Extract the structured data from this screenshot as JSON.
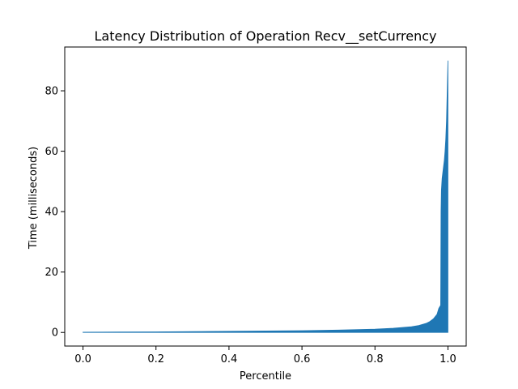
{
  "chart_data": {
    "type": "area",
    "title": "Latency Distribution of Operation Recv__setCurrency",
    "xlabel": "Percentile",
    "ylabel": "Time (milliseconds)",
    "xlim": [
      -0.05,
      1.05
    ],
    "ylim": [
      -4.5,
      94.5
    ],
    "xticks": [
      0.0,
      0.2,
      0.4,
      0.6,
      0.8,
      1.0
    ],
    "xtick_labels": [
      "0.0",
      "0.2",
      "0.4",
      "0.6",
      "0.8",
      "1.0"
    ],
    "yticks": [
      0,
      20,
      40,
      60,
      80
    ],
    "ytick_labels": [
      "0",
      "20",
      "40",
      "60",
      "80"
    ],
    "grid": false,
    "series": [
      {
        "color": "#1f77b4",
        "x": [
          0.0,
          0.1,
          0.2,
          0.3,
          0.4,
          0.5,
          0.6,
          0.7,
          0.8,
          0.85,
          0.9,
          0.92,
          0.94,
          0.95,
          0.96,
          0.97,
          0.975,
          0.98,
          0.981,
          0.982,
          0.984,
          0.986,
          0.988,
          0.99,
          0.992,
          0.994,
          0.996,
          0.998,
          1.0
        ],
        "y_upper": [
          0.1,
          0.15,
          0.2,
          0.3,
          0.4,
          0.5,
          0.6,
          0.8,
          1.1,
          1.4,
          1.9,
          2.3,
          3.0,
          3.6,
          4.5,
          6.0,
          8.0,
          9.0,
          40.0,
          47.0,
          51.0,
          53.0,
          55.0,
          57.0,
          60.0,
          64.0,
          70.0,
          80.0,
          90.0
        ],
        "y_lower": [
          0.0,
          0.0,
          0.0,
          0.0,
          0.0,
          0.0,
          0.0,
          0.0,
          0.0,
          0.0,
          0.0,
          0.0,
          0.0,
          0.0,
          0.0,
          0.0,
          0.0,
          0.0,
          0.0,
          0.0,
          0.0,
          0.0,
          0.0,
          0.0,
          0.0,
          0.0,
          0.0,
          0.0,
          0.0
        ]
      }
    ]
  }
}
